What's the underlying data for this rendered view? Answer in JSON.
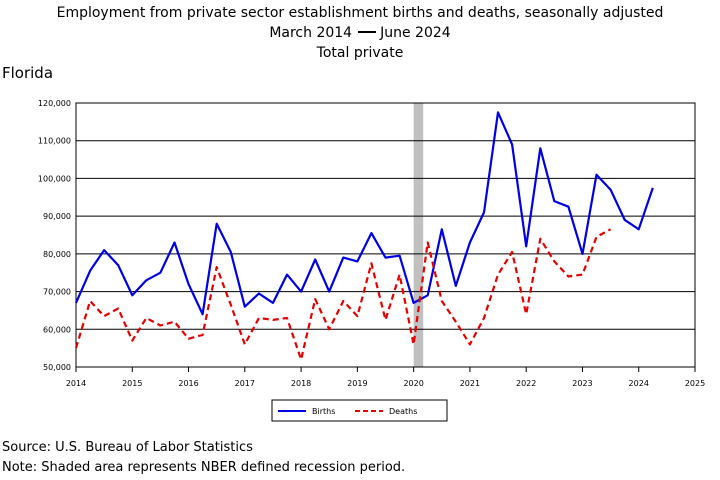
{
  "header": {
    "title_line1": "Employment from private sector establishment births and deaths, seasonally adjusted",
    "period_start": "March 2014",
    "period_end": "June 2024",
    "title_line3": "Total private",
    "state": "Florida"
  },
  "footer": {
    "source": "Source: U.S. Bureau of Labor Statistics",
    "note": "Note: Shaded area represents NBER defined recession period."
  },
  "chart_data": {
    "type": "line",
    "xlim": [
      2014,
      2025
    ],
    "ylim": [
      50000,
      120000
    ],
    "x_ticks": [
      "2014",
      "2015",
      "2016",
      "2017",
      "2018",
      "2019",
      "2020",
      "2021",
      "2022",
      "2023",
      "2024",
      "2025"
    ],
    "y_ticks": [
      "50,000",
      "60,000",
      "70,000",
      "80,000",
      "90,000",
      "100,000",
      "110,000",
      "120,000"
    ],
    "grid": "horizontal",
    "legend_position": "bottom",
    "recession": {
      "start": 2020.0,
      "end": 2020.17,
      "color": "#c0c0c0"
    },
    "series": [
      {
        "name": "Births",
        "color": "#0000e6",
        "style": "solid",
        "x": [
          2014.0,
          2014.25,
          2014.5,
          2014.75,
          2015.0,
          2015.25,
          2015.5,
          2015.75,
          2016.0,
          2016.25,
          2016.5,
          2016.75,
          2017.0,
          2017.25,
          2017.5,
          2017.75,
          2018.0,
          2018.25,
          2018.5,
          2018.75,
          2019.0,
          2019.25,
          2019.5,
          2019.75,
          2020.0,
          2020.25,
          2020.5,
          2020.75,
          2021.0,
          2021.25,
          2021.5,
          2021.75,
          2022.0,
          2022.25,
          2022.5,
          2022.75,
          2023.0,
          2023.25,
          2023.5,
          2023.75,
          2024.0,
          2024.25
        ],
        "values": [
          67000,
          75500,
          81000,
          77000,
          69000,
          73000,
          75000,
          83000,
          72000,
          64000,
          88000,
          80500,
          66000,
          69500,
          67000,
          74500,
          70000,
          78500,
          70000,
          79000,
          78000,
          85500,
          79000,
          79500,
          67000,
          69000,
          86500,
          71500,
          83000,
          91000,
          117500,
          109000,
          82000,
          108000,
          94000,
          92500,
          80000,
          101000,
          97000,
          89000,
          86500,
          97500
        ]
      },
      {
        "name": "Deaths",
        "color": "#e60000",
        "style": "dashed",
        "x": [
          2014.0,
          2014.25,
          2014.5,
          2014.75,
          2015.0,
          2015.25,
          2015.5,
          2015.75,
          2016.0,
          2016.25,
          2016.5,
          2016.75,
          2017.0,
          2017.25,
          2017.5,
          2017.75,
          2018.0,
          2018.25,
          2018.5,
          2018.75,
          2019.0,
          2019.25,
          2019.5,
          2019.75,
          2020.0,
          2020.25,
          2020.5,
          2020.75,
          2021.0,
          2021.25,
          2021.5,
          2021.75,
          2022.0,
          2022.25,
          2022.5,
          2022.75,
          2023.0,
          2023.25,
          2023.5
        ],
        "values": [
          55000,
          67500,
          63500,
          65500,
          57000,
          63000,
          61000,
          62000,
          57500,
          58500,
          76500,
          66500,
          56000,
          63000,
          62500,
          63000,
          52000,
          68000,
          60000,
          67500,
          63500,
          77500,
          62500,
          74500,
          56000,
          83000,
          67500,
          62000,
          56000,
          63000,
          74500,
          80500,
          64000,
          84000,
          78000,
          74000,
          74500,
          84500,
          86500
        ]
      }
    ]
  }
}
